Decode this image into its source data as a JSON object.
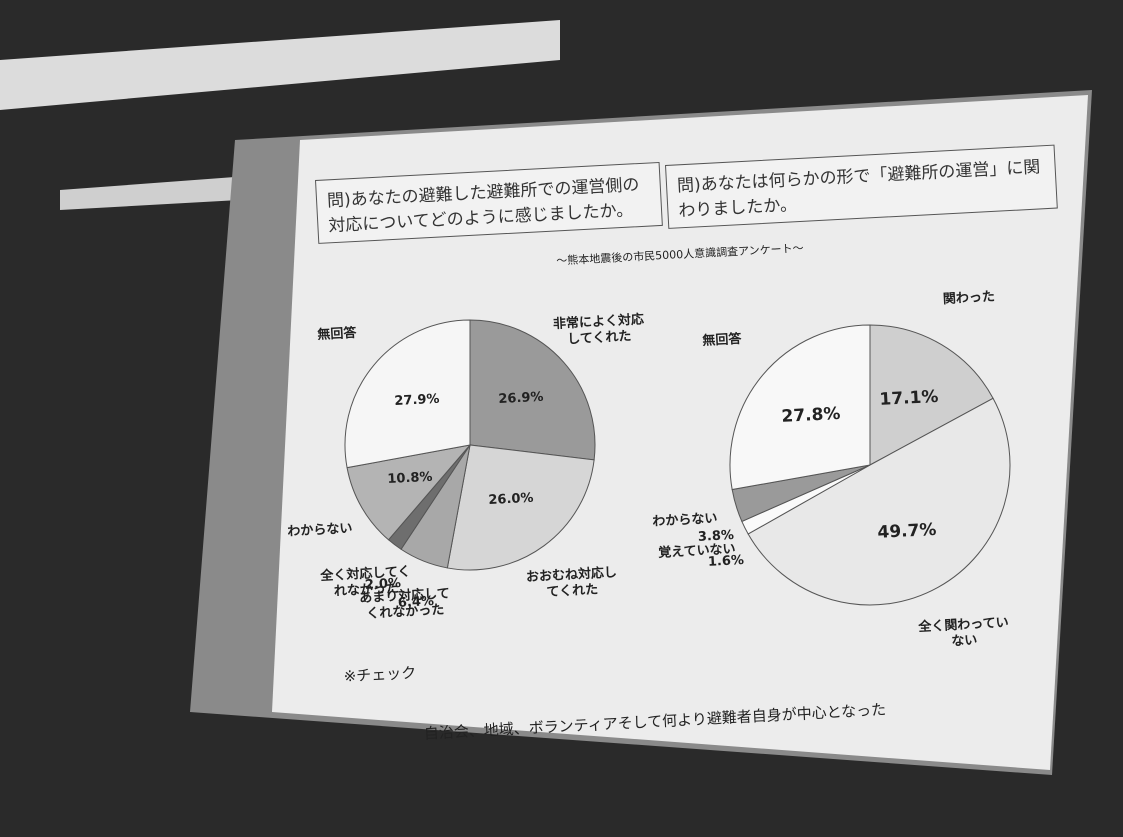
{
  "slide": {
    "subtitle": "～熊本地震後の市民5000人意識調査アンケート～",
    "note_heading": "※チェック",
    "note": "自治会、地域、ボランティアそして何より避難者自身が中心となった"
  },
  "chart_data": [
    {
      "type": "pie",
      "title": "問)あなたの避難した避難所での運営側の対応についてどのように感じましたか。",
      "categories": [
        "非常によく対応してくれた",
        "おおむね対応してくれた",
        "あまり対応してくれなかった",
        "全く対応してくれなかった",
        "わからない",
        "無回答"
      ],
      "values": [
        26.9,
        26.0,
        6.4,
        2.0,
        10.8,
        27.9
      ],
      "value_labels": [
        "26.9%",
        "26.0%",
        "6.4%",
        "2.0%",
        "10.8%",
        "27.9%"
      ],
      "colors": [
        "#9a9a9a",
        "#d6d6d6",
        "#a8a8a8",
        "#6e6e6e",
        "#b4b4b4",
        "#f6f6f6"
      ]
    },
    {
      "type": "pie",
      "title": "問)あなたは何らかの形で「避難所の運営」に関わりましたか。",
      "categories": [
        "関わった",
        "全く関わっていない",
        "覚えていない",
        "わからない",
        "無回答"
      ],
      "values": [
        17.1,
        49.7,
        1.6,
        3.8,
        27.8
      ],
      "value_labels": [
        "17.1%",
        "49.7%",
        "1.6%",
        "3.8%",
        "27.8%"
      ],
      "colors": [
        "#cfcfcf",
        "#e8e8e8",
        "#fafafa",
        "#9a9a9a",
        "#f8f8f8"
      ]
    }
  ]
}
